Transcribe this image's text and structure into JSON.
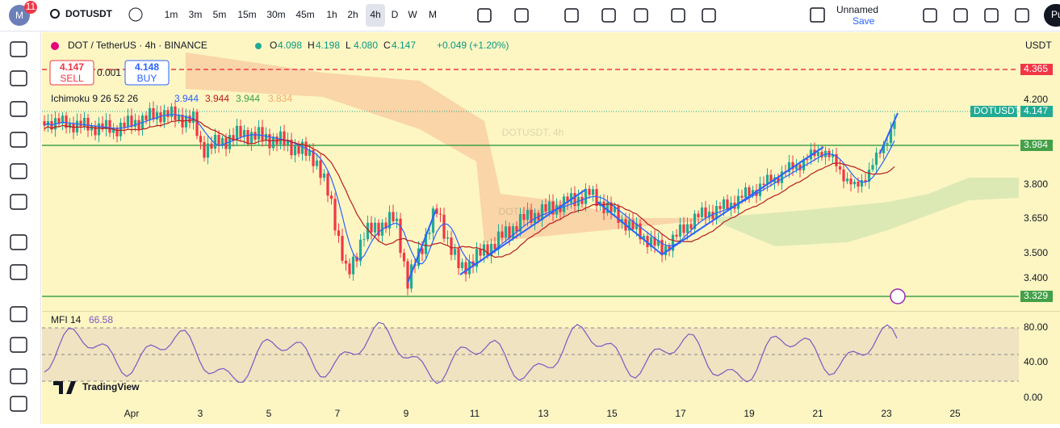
{
  "toolbar": {
    "badge": "11",
    "symbol": "DOTUSDT",
    "intervals": [
      "1m",
      "3m",
      "5m",
      "15m",
      "30m",
      "45m",
      "1h",
      "2h",
      "4h",
      "D",
      "W",
      "M"
    ],
    "layout_name": "Unnamed",
    "save": "Save",
    "publish": "Pu"
  },
  "legend": {
    "title": "DOT / TetherUS · 4h · BINANCE",
    "o_label": "O",
    "o": "4.098",
    "h_label": "H",
    "h": "4.198",
    "l_label": "L",
    "l": "4.080",
    "c_label": "C",
    "c": "4.147",
    "change": "+0.049 (+1.20%)"
  },
  "trade": {
    "sell_price": "4.147",
    "sell": "SELL",
    "spread": "0.001",
    "buy_price": "4.148",
    "buy": "BUY"
  },
  "ichimoku": {
    "name": "Ichimoku 9 26 52 26",
    "values": [
      "3.944",
      "3.944",
      "3.944",
      "3.834"
    ]
  },
  "watermark": {
    "main": "DOTUSDT, 4h",
    "sub": "DOT / TetherUS"
  },
  "price_axis": {
    "currency": "USDT",
    "labels": [
      "4.200",
      "3.800",
      "3.650",
      "3.500",
      "3.400"
    ],
    "tags": {
      "alert": "4.365",
      "symbol": "DOTUSDT",
      "last": "4.147",
      "resistance": "3.984",
      "support": "3.329"
    }
  },
  "mfi": {
    "name": "MFI 14",
    "value": "66.58",
    "labels": [
      "80.00",
      "40.00",
      "0.00"
    ]
  },
  "time_axis": [
    "Apr",
    "3",
    "5",
    "7",
    "9",
    "11",
    "13",
    "15",
    "17",
    "19",
    "21",
    "23",
    "25"
  ],
  "logo": "TradingView"
}
